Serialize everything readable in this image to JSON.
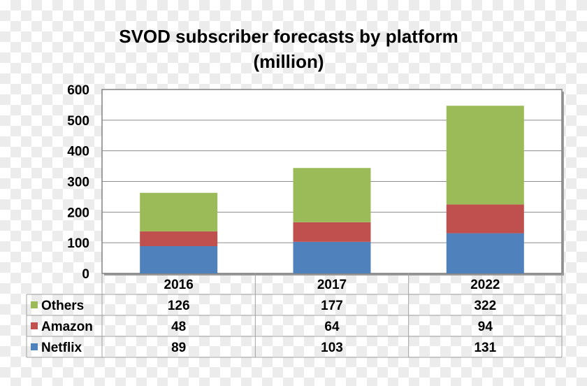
{
  "chart_data": {
    "type": "bar",
    "stacked": true,
    "title": "SVOD subscriber forecasts by platform (million)",
    "title_lines": [
      "SVOD subscriber forecasts by platform",
      "(million)"
    ],
    "categories": [
      "2016",
      "2017",
      "2022"
    ],
    "series": [
      {
        "name": "Netflix",
        "values": [
          89,
          103,
          131
        ],
        "color": "#4F81BD"
      },
      {
        "name": "Amazon",
        "values": [
          48,
          64,
          94
        ],
        "color": "#C0504D"
      },
      {
        "name": "Others",
        "values": [
          126,
          177,
          322
        ],
        "color": "#9BBB59"
      }
    ],
    "ylim": [
      0,
      600
    ],
    "yticks": [
      0,
      100,
      200,
      300,
      400,
      500,
      600
    ],
    "grid": true,
    "data_table": true,
    "table_row_order": [
      "Others",
      "Amazon",
      "Netflix"
    ]
  }
}
